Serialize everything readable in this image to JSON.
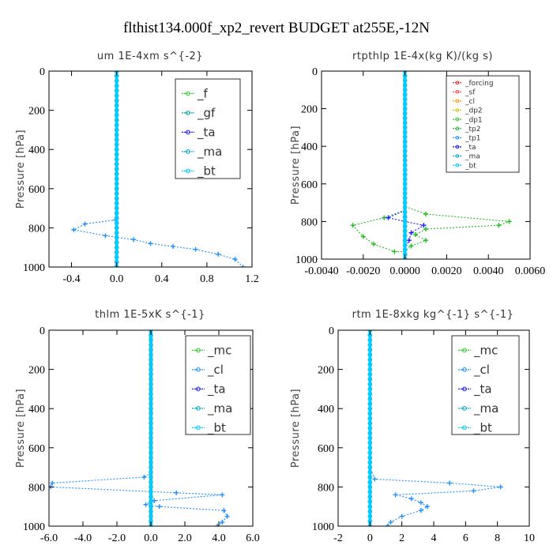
{
  "figure_title": "flthist134.000f_xp2_revert  BUDGET at255E,-12N",
  "chart_data": [
    {
      "type": "line",
      "title": "um   1E-4xm s^{-2}",
      "ylabel": "Pressure [hPa]",
      "xlim": [
        -0.6,
        1.2
      ],
      "ylim": [
        1000,
        0
      ],
      "xticks": [
        -0.4,
        0.0,
        0.4,
        0.8,
        1.2
      ],
      "xtick_labels": [
        "-0.4",
        "0.0",
        "0.4",
        "0.8",
        "1.2"
      ],
      "yticks": [
        0,
        200,
        400,
        600,
        800,
        1000
      ],
      "ytick_labels": [
        "0",
        "200",
        "400",
        "600",
        "800",
        "1000"
      ],
      "legend_position": "top-right",
      "series": [
        {
          "name": "_f",
          "color": "#33cc33",
          "x": [
            0.0,
            0.0
          ],
          "y": [
            0,
            1000
          ]
        },
        {
          "name": "_gf",
          "color": "#00a0a0",
          "x": [
            0.0,
            0.0
          ],
          "y": [
            0,
            1000
          ]
        },
        {
          "name": "_ta",
          "color": "#1a1aff",
          "x": [
            0.0,
            0.0
          ],
          "y": [
            0,
            1000
          ]
        },
        {
          "name": "_ma",
          "color": "#00aacc",
          "x": [
            0.0,
            0.0
          ],
          "y": [
            0,
            1000
          ]
        },
        {
          "name": "_bt",
          "color": "#00ccff",
          "x": [
            0.0,
            0.0
          ],
          "y": [
            0,
            1000
          ]
        },
        {
          "name": "",
          "color": "#1e90ff",
          "x": [
            0.0,
            0.0,
            -0.01,
            -0.28,
            -0.38,
            -0.1,
            0.15,
            0.3,
            0.5,
            0.7,
            0.9,
            1.05,
            1.12
          ],
          "y": [
            0,
            740,
            760,
            780,
            810,
            840,
            860,
            880,
            895,
            910,
            935,
            960,
            1000
          ]
        }
      ]
    },
    {
      "type": "line",
      "title": "rtpthlp   1E-4x(kg K)/(kg s)",
      "ylabel": "Pressure [hPa]",
      "xlim": [
        -0.004,
        0.006
      ],
      "ylim": [
        1000,
        0
      ],
      "xticks": [
        -0.004,
        -0.002,
        0.0,
        0.002,
        0.004,
        0.006
      ],
      "xtick_labels": [
        "-0.0040",
        "-0.0020",
        "0.0000",
        "0.0020",
        "0.0040",
        "0.0060"
      ],
      "yticks": [
        0,
        200,
        400,
        600,
        800,
        1000
      ],
      "ytick_labels": [
        "0",
        "200",
        "400",
        "600",
        "800",
        "1000"
      ],
      "legend_position": "top-right",
      "series": [
        {
          "name": "_forcing",
          "color": "#dd2222",
          "x": [
            0.0,
            0.0
          ],
          "y": [
            0,
            1000
          ]
        },
        {
          "name": "_sf",
          "color": "#ff4444",
          "x": [
            0.0,
            0.0
          ],
          "y": [
            0,
            1000
          ]
        },
        {
          "name": "_cl",
          "color": "#ff9900",
          "x": [
            0.0,
            0.0
          ],
          "y": [
            0,
            1000
          ]
        },
        {
          "name": "_dp2",
          "color": "#cccc00",
          "x": [
            0.0,
            0.0
          ],
          "y": [
            0,
            1000
          ]
        },
        {
          "name": "_dp1",
          "color": "#33cc33",
          "x": [
            0.0,
            0.0
          ],
          "y": [
            0,
            1000
          ]
        },
        {
          "name": "_tp2",
          "color": "#22bb22",
          "x": [
            0.0,
            0.0,
            0.001,
            0.005,
            0.0045,
            0.001,
            0.0005,
            0.001,
            0.0003,
            0.0,
            -0.0005,
            -0.0015,
            -0.002,
            -0.0025,
            -0.001,
            0.0
          ],
          "y": [
            0,
            720,
            760,
            800,
            820,
            840,
            870,
            900,
            930,
            960,
            960,
            920,
            880,
            820,
            780,
            740
          ]
        },
        {
          "name": "_tp1",
          "color": "#1e90ff",
          "x": [
            0.0,
            0.0
          ],
          "y": [
            0,
            1000
          ]
        },
        {
          "name": "_ta",
          "color": "#1a1aff",
          "x": [
            0.0,
            0.0,
            -0.0008,
            0.0,
            0.0009,
            0.0003,
            0.0002,
            0.0
          ],
          "y": [
            0,
            740,
            780,
            800,
            820,
            860,
            900,
            940
          ]
        },
        {
          "name": "_ma",
          "color": "#00aacc",
          "x": [
            0.0,
            0.0
          ],
          "y": [
            0,
            1000
          ]
        },
        {
          "name": "_bt",
          "color": "#00ccff",
          "x": [
            0.0,
            0.0
          ],
          "y": [
            0,
            1000
          ]
        }
      ]
    },
    {
      "type": "line",
      "title": "thlm   1E-5xK s^{-1}",
      "ylabel": "Pressure [hPa]",
      "xlim": [
        -6.0,
        6.0
      ],
      "ylim": [
        1000,
        0
      ],
      "xticks": [
        -6.0,
        -4.0,
        -2.0,
        0.0,
        2.0,
        4.0,
        6.0
      ],
      "xtick_labels": [
        "-6.0",
        "-4.0",
        "-2.0",
        "0.0",
        "2.0",
        "4.0",
        "6.0"
      ],
      "yticks": [
        0,
        200,
        400,
        600,
        800,
        1000
      ],
      "ytick_labels": [
        "0",
        "200",
        "400",
        "600",
        "800",
        "1000"
      ],
      "legend_position": "top-right",
      "series": [
        {
          "name": "_mc",
          "color": "#33cc33",
          "x": [
            0.0,
            0.0
          ],
          "y": [
            0,
            1000
          ]
        },
        {
          "name": "_cl",
          "color": "#1e90ff",
          "x": [
            0.0,
            0.0,
            -0.4,
            -5.8,
            -5.9,
            1.5,
            4.2,
            0.2,
            -0.3,
            0.5,
            4.3,
            4.5,
            4.2,
            3.9
          ],
          "y": [
            0,
            730,
            750,
            780,
            800,
            830,
            840,
            870,
            890,
            900,
            920,
            950,
            980,
            1000
          ]
        },
        {
          "name": "_ta",
          "color": "#1a1aff",
          "x": [
            0.0,
            0.0
          ],
          "y": [
            0,
            1000
          ]
        },
        {
          "name": "_ma",
          "color": "#00aacc",
          "x": [
            0.0,
            0.0
          ],
          "y": [
            0,
            1000
          ]
        },
        {
          "name": "_bt",
          "color": "#00ccff",
          "x": [
            0.0,
            0.0
          ],
          "y": [
            0,
            1000
          ]
        }
      ]
    },
    {
      "type": "line",
      "title": "rtm   1E-8xkg kg^{-1} s^{-1}",
      "ylabel": "Pressure [hPa]",
      "xlim": [
        -2,
        10
      ],
      "ylim": [
        1000,
        0
      ],
      "xticks": [
        -2,
        0,
        2,
        4,
        6,
        8,
        10
      ],
      "xtick_labels": [
        "-2",
        "0",
        "2",
        "4",
        "6",
        "8",
        "10"
      ],
      "yticks": [
        0,
        200,
        400,
        600,
        800,
        1000
      ],
      "ytick_labels": [
        "0",
        "200",
        "400",
        "600",
        "800",
        "1000"
      ],
      "legend_position": "top-right",
      "series": [
        {
          "name": "_mc",
          "color": "#33cc33",
          "x": [
            0.0,
            0.0
          ],
          "y": [
            0,
            1000
          ]
        },
        {
          "name": "_cl",
          "color": "#1e90ff",
          "x": [
            0.0,
            0.0,
            0.3,
            5.0,
            8.2,
            6.5,
            1.6,
            2.6,
            3.2,
            3.6,
            3.2,
            2.0,
            1.3,
            1.1
          ],
          "y": [
            0,
            700,
            760,
            780,
            800,
            820,
            840,
            860,
            880,
            900,
            920,
            950,
            980,
            1000
          ]
        },
        {
          "name": "_ta",
          "color": "#1a1aff",
          "x": [
            0.0,
            0.0
          ],
          "y": [
            0,
            1000
          ]
        },
        {
          "name": "_ma",
          "color": "#00aacc",
          "x": [
            0.0,
            0.0
          ],
          "y": [
            0,
            1000
          ]
        },
        {
          "name": "_bt",
          "color": "#00ccff",
          "x": [
            0.0,
            0.0
          ],
          "y": [
            0,
            1000
          ]
        }
      ]
    }
  ]
}
